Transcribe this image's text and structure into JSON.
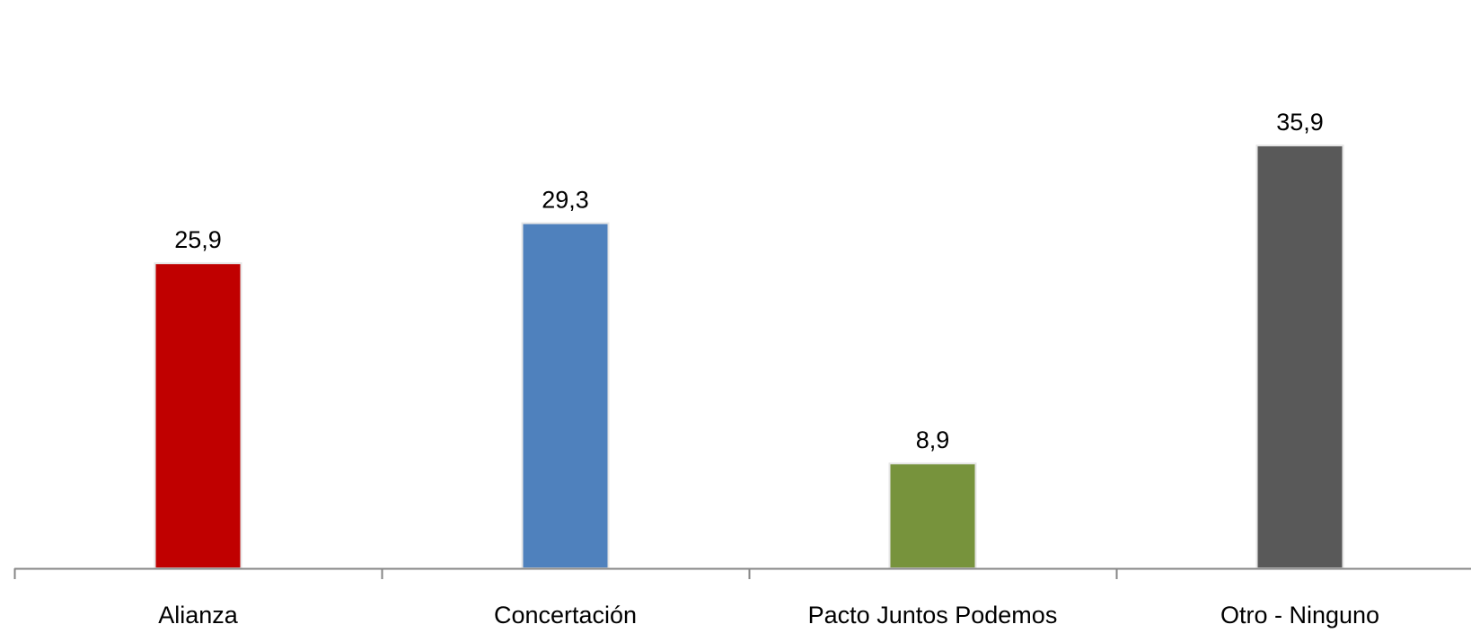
{
  "chart_data": {
    "type": "bar",
    "title": "",
    "xlabel": "",
    "ylabel": "",
    "categories": [
      "Alianza",
      "Concertación",
      "Pacto Juntos Podemos",
      "Otro - Ninguno"
    ],
    "values": [
      25.9,
      29.3,
      8.9,
      35.9
    ],
    "value_labels": [
      "25,9",
      "29,3",
      "8,9",
      "35,9"
    ],
    "colors": [
      "#c00000",
      "#4f81bd",
      "#77933c",
      "#595959"
    ],
    "ylim": [
      0,
      40
    ],
    "grid": false,
    "legend": "none",
    "axis_color": "#868686"
  }
}
